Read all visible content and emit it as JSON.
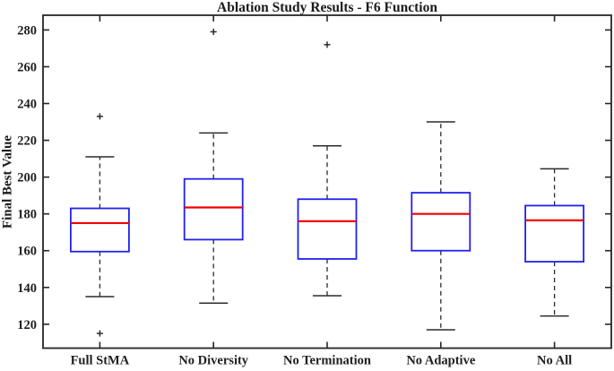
{
  "chart_data": {
    "type": "boxplot",
    "title": "Ablation Study Results - F6 Function",
    "xlabel": "",
    "ylabel": "Final Best Value",
    "categories": [
      "Full StMA",
      "No Diversity",
      "No Termination",
      "No Adaptive",
      "No All"
    ],
    "series": [
      {
        "name": "Full StMA",
        "whisker_low": 135,
        "q1": 159.5,
        "median": 175,
        "q3": 183,
        "whisker_high": 211,
        "outliers": [
          233,
          115
        ]
      },
      {
        "name": "No Diversity",
        "whisker_low": 131.5,
        "q1": 166,
        "median": 183.5,
        "q3": 199,
        "whisker_high": 224,
        "outliers": [
          279
        ]
      },
      {
        "name": "No Termination",
        "whisker_low": 135.5,
        "q1": 155.5,
        "median": 176,
        "q3": 188,
        "whisker_high": 217,
        "outliers": [
          272
        ]
      },
      {
        "name": "No Adaptive",
        "whisker_low": 117,
        "q1": 160,
        "median": 180,
        "q3": 191.5,
        "whisker_high": 230,
        "outliers": []
      },
      {
        "name": "No All",
        "whisker_low": 124.5,
        "q1": 154,
        "median": 176.5,
        "q3": 184.5,
        "whisker_high": 204.5,
        "outliers": []
      }
    ],
    "ylim": [
      107,
      288
    ],
    "yticks": [
      120,
      140,
      160,
      180,
      200,
      220,
      240,
      260,
      280
    ],
    "grid": false,
    "legend": null,
    "colors": {
      "box": "#2121ee",
      "median": "#f40000",
      "whisker": "#2b2b2b",
      "cap": "#2b2b2b",
      "outlier": "#2b2b2b",
      "frame": "#262626",
      "text": "#1f1f1f",
      "background": "#ffffff"
    }
  }
}
